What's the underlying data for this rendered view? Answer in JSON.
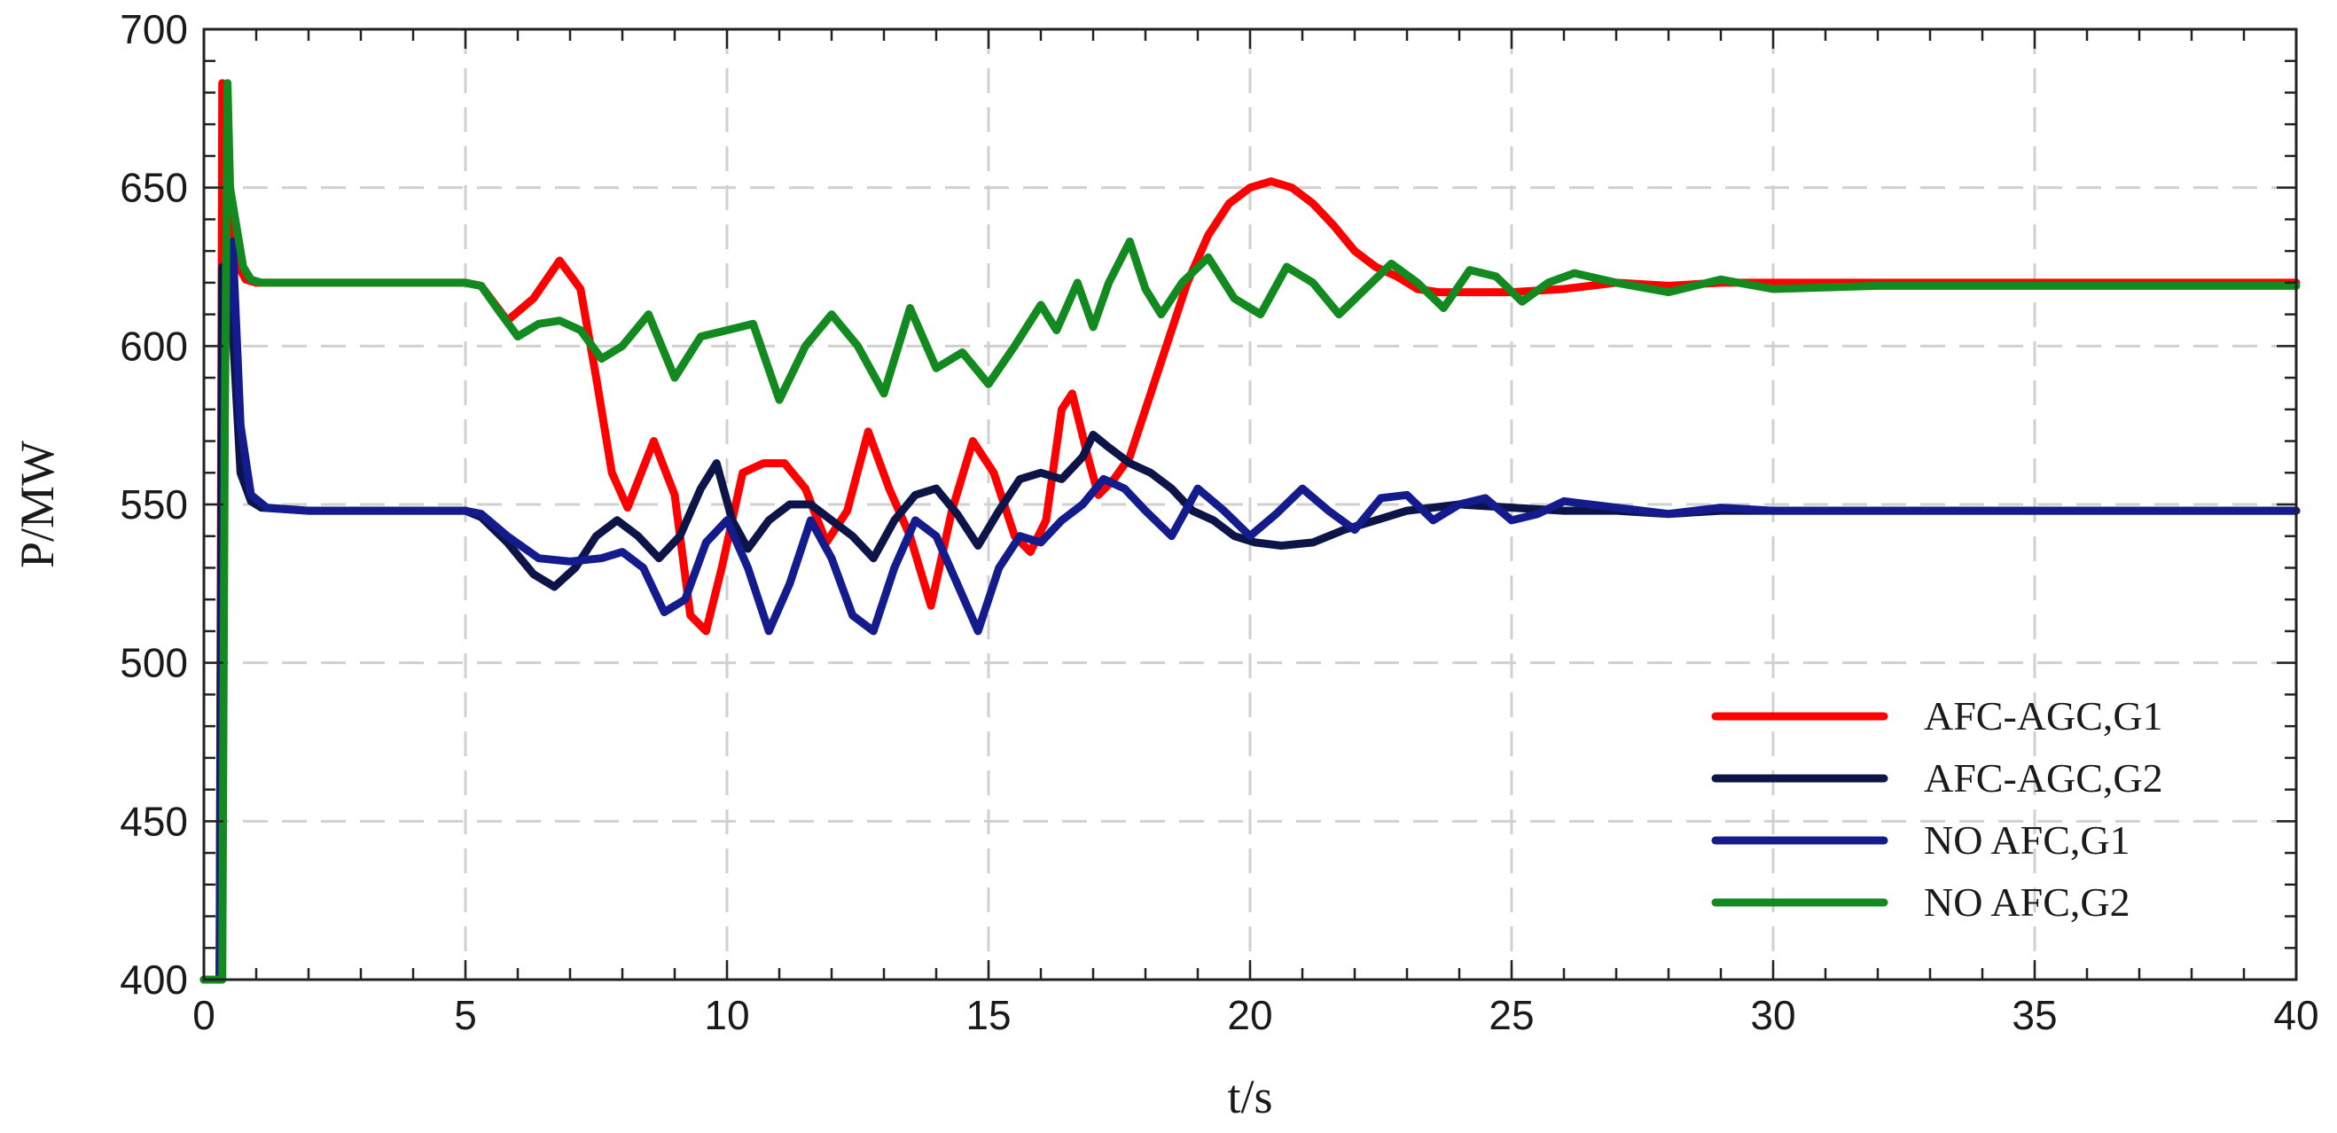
{
  "chart_data": {
    "type": "line",
    "title": "",
    "xlabel": "t/s",
    "ylabel": "P/MW",
    "xlim": [
      0,
      40
    ],
    "ylim": [
      400,
      700
    ],
    "xticks": [
      0,
      5,
      10,
      15,
      20,
      25,
      30,
      35,
      40
    ],
    "yticks": [
      400,
      450,
      500,
      550,
      600,
      650,
      700
    ],
    "grid": true,
    "legend_position": "bottom-right",
    "series": [
      {
        "name": "AFC-AGC,G1",
        "color": "#ff0000",
        "x": [
          0,
          0.3,
          0.35,
          0.45,
          0.6,
          0.8,
          1,
          2,
          3,
          4,
          5,
          5.3,
          5.8,
          6.3,
          6.8,
          7.2,
          7.5,
          7.8,
          8.1,
          8.6,
          9.0,
          9.3,
          9.6,
          9.9,
          10.3,
          10.7,
          11.1,
          11.5,
          11.9,
          12.3,
          12.7,
          13.1,
          13.5,
          13.9,
          14.3,
          14.7,
          15.1,
          15.5,
          15.8,
          16.1,
          16.4,
          16.6,
          16.9,
          17.1,
          17.4,
          17.7,
          18.0,
          18.4,
          18.8,
          19.2,
          19.6,
          20.0,
          20.4,
          20.8,
          21.2,
          21.6,
          22.0,
          22.4,
          22.8,
          23.2,
          23.6,
          24,
          25,
          26,
          27,
          28,
          29,
          30,
          32,
          35,
          38,
          40
        ],
        "y": [
          400,
          400,
          683,
          660,
          627,
          621,
          620,
          620,
          620,
          620,
          620,
          619,
          608,
          615,
          627,
          618,
          590,
          560,
          549,
          570,
          553,
          515,
          510,
          530,
          560,
          563,
          563,
          555,
          538,
          548,
          573,
          555,
          540,
          518,
          548,
          570,
          560,
          540,
          535,
          545,
          580,
          585,
          565,
          553,
          558,
          565,
          580,
          600,
          620,
          635,
          645,
          650,
          652,
          650,
          645,
          638,
          630,
          625,
          622,
          618,
          617,
          617,
          617,
          618,
          620,
          619,
          620,
          620,
          620,
          620,
          620,
          620
        ]
      },
      {
        "name": "AFC-AGC,G2",
        "color": "#0d1447",
        "x": [
          0,
          0.3,
          0.35,
          0.5,
          0.7,
          0.9,
          1.1,
          2,
          3,
          4,
          5,
          5.3,
          5.8,
          6.3,
          6.7,
          7.1,
          7.5,
          7.9,
          8.3,
          8.7,
          9.1,
          9.5,
          9.8,
          10.1,
          10.4,
          10.8,
          11.2,
          11.6,
          12.0,
          12.4,
          12.8,
          13.2,
          13.6,
          14.0,
          14.4,
          14.8,
          15.2,
          15.6,
          16.0,
          16.4,
          16.8,
          17.0,
          17.3,
          17.7,
          18.1,
          18.5,
          18.9,
          19.3,
          19.7,
          20.1,
          20.6,
          21.2,
          21.8,
          22.4,
          23,
          24,
          25,
          26,
          27,
          28,
          29,
          30,
          32,
          35,
          38,
          40
        ],
        "y": [
          400,
          400,
          625,
          620,
          560,
          551,
          549,
          548,
          548,
          548,
          548,
          546,
          538,
          528,
          524,
          530,
          540,
          545,
          540,
          533,
          540,
          555,
          563,
          545,
          536,
          545,
          550,
          550,
          545,
          540,
          533,
          545,
          553,
          555,
          547,
          537,
          548,
          558,
          560,
          558,
          565,
          572,
          568,
          563,
          560,
          555,
          548,
          545,
          540,
          538,
          537,
          538,
          542,
          545,
          548,
          550,
          549,
          548,
          548,
          547,
          548,
          548,
          548,
          548,
          548,
          548
        ]
      },
      {
        "name": "NO AFC,G1",
        "color": "#141b8c",
        "x": [
          0,
          0.3,
          0.4,
          0.55,
          0.7,
          0.9,
          1.2,
          2,
          3,
          4,
          5,
          5.3,
          5.8,
          6.4,
          7.0,
          7.6,
          8.0,
          8.4,
          8.8,
          9.2,
          9.6,
          10.0,
          10.4,
          10.8,
          11.2,
          11.6,
          12.0,
          12.4,
          12.8,
          13.2,
          13.6,
          14.0,
          14.4,
          14.8,
          15.2,
          15.6,
          16.0,
          16.4,
          16.8,
          17.2,
          17.6,
          18.0,
          18.5,
          19.0,
          19.5,
          20.0,
          20.5,
          21.0,
          21.5,
          22.0,
          22.5,
          23.0,
          23.5,
          24.0,
          24.5,
          25.0,
          25.5,
          26.0,
          27,
          28,
          29,
          30,
          32,
          35,
          38,
          40
        ],
        "y": [
          400,
          400,
          600,
          633,
          575,
          553,
          549,
          548,
          548,
          548,
          548,
          547,
          540,
          533,
          532,
          533,
          535,
          530,
          516,
          520,
          538,
          545,
          530,
          510,
          525,
          545,
          533,
          515,
          510,
          530,
          545,
          540,
          525,
          510,
          530,
          540,
          538,
          545,
          550,
          558,
          555,
          548,
          540,
          555,
          548,
          540,
          547,
          555,
          548,
          542,
          552,
          553,
          545,
          550,
          552,
          545,
          547,
          551,
          549,
          547,
          549,
          548,
          548,
          548,
          548,
          548
        ]
      },
      {
        "name": "NO AFC,G2",
        "color": "#138a1f",
        "x": [
          0,
          0.35,
          0.4,
          0.45,
          0.5,
          0.6,
          0.75,
          0.9,
          1.1,
          2,
          3,
          4,
          5,
          5.3,
          5.6,
          6.0,
          6.4,
          6.8,
          7.2,
          7.6,
          8.0,
          8.5,
          9.0,
          9.5,
          10.0,
          10.5,
          11.0,
          11.5,
          12.0,
          12.5,
          13.0,
          13.5,
          14.0,
          14.5,
          15.0,
          15.5,
          16.0,
          16.3,
          16.7,
          17.0,
          17.3,
          17.7,
          18.0,
          18.3,
          18.7,
          19.2,
          19.7,
          20.2,
          20.7,
          21.2,
          21.7,
          22.2,
          22.7,
          23.2,
          23.7,
          24.2,
          24.7,
          25.2,
          25.7,
          26.2,
          27,
          28,
          29,
          30,
          32,
          35,
          38,
          40
        ],
        "y": [
          400,
          400,
          575,
          683,
          650,
          640,
          625,
          621,
          620,
          620,
          620,
          620,
          620,
          619,
          612,
          603,
          607,
          608,
          605,
          596,
          600,
          610,
          590,
          603,
          605,
          607,
          583,
          600,
          610,
          600,
          585,
          612,
          593,
          598,
          588,
          600,
          613,
          605,
          620,
          606,
          620,
          633,
          618,
          610,
          620,
          628,
          615,
          610,
          625,
          620,
          610,
          618,
          626,
          620,
          612,
          624,
          622,
          614,
          620,
          623,
          620,
          617,
          621,
          618,
          619,
          619,
          619,
          619
        ]
      }
    ]
  }
}
